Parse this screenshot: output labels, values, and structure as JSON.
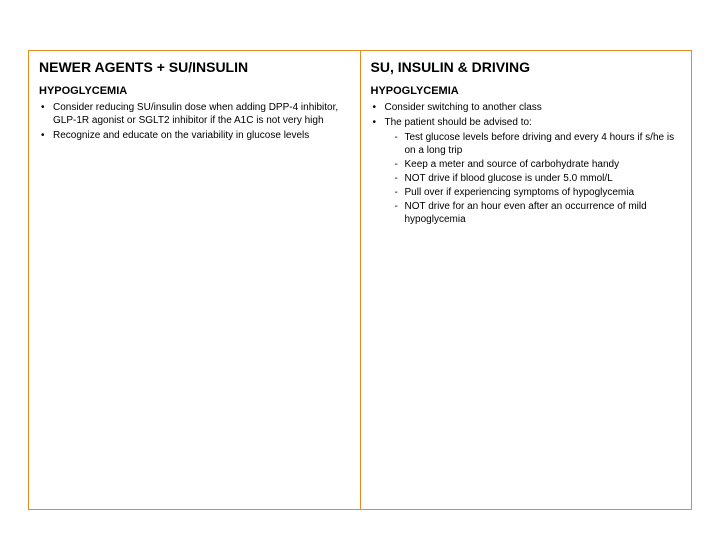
{
  "layout": {
    "border_color": "#e38b1f",
    "background": "#ffffff"
  },
  "left": {
    "title": "NEWER AGENTS + SU/INSULIN",
    "subtitle": "HYPOGLYCEMIA",
    "bullets": [
      "Consider reducing SU/insulin dose when adding DPP-4 inhibitor, GLP-1R agonist or SGLT2 inhibitor if the A1C is not very high",
      "Recognize and educate on the variability in glucose levels"
    ]
  },
  "right": {
    "title": "SU, INSULIN & DRIVING",
    "subtitle": "HYPOGLYCEMIA",
    "bullets": [
      "Consider switching to another class",
      "The patient should be advised to:"
    ],
    "sub_bullets": [
      "Test glucose levels before driving and every 4 hours if s/he is on a long trip",
      "Keep a meter and source of carbohydrate handy",
      "NOT drive if blood glucose is under 5.0 mmol/L",
      "Pull over if experiencing symptoms of hypoglycemia",
      "NOT drive for an hour even after an occurrence of mild hypoglycemia"
    ]
  }
}
